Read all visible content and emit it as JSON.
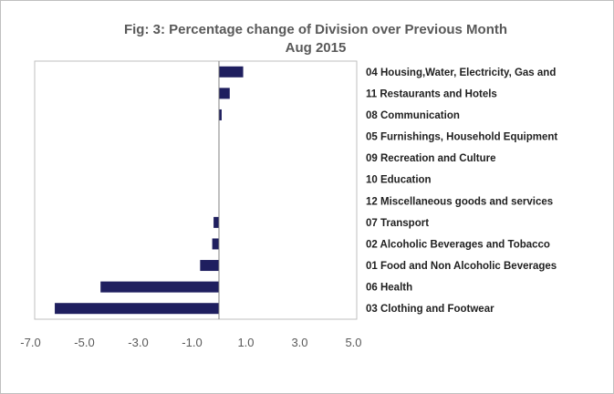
{
  "chart_data": {
    "type": "bar",
    "orientation": "horizontal",
    "title": "Fig: 3: Percentage change of Division over Previous Month",
    "subtitle": "Aug 2015",
    "categories": [
      "04 Housing,Water, Electricity, Gas and",
      "11 Restaurants and Hotels",
      "08 Communication",
      "05 Furnishings, Household Equipment",
      "09 Recreation and Culture",
      "10 Education",
      "12 Miscellaneous goods and services",
      "07 Transport",
      "02 Alcoholic Beverages and Tobacco",
      "01 Food and Non Alcoholic Beverages",
      "06 Health",
      "03 Clothing and Footwear"
    ],
    "values": [
      0.9,
      0.4,
      0.1,
      0.0,
      0.0,
      0.0,
      0.0,
      -0.2,
      -0.25,
      -0.7,
      -4.4,
      -6.1
    ],
    "xlim": [
      -7.0,
      5.0
    ],
    "xticks": [
      "-7.0",
      "-5.0",
      "-3.0",
      "-1.0",
      "1.0",
      "3.0",
      "5.0"
    ],
    "xlabel": "",
    "ylabel": "",
    "grid": false,
    "bar_color": "#1f1f5f"
  }
}
